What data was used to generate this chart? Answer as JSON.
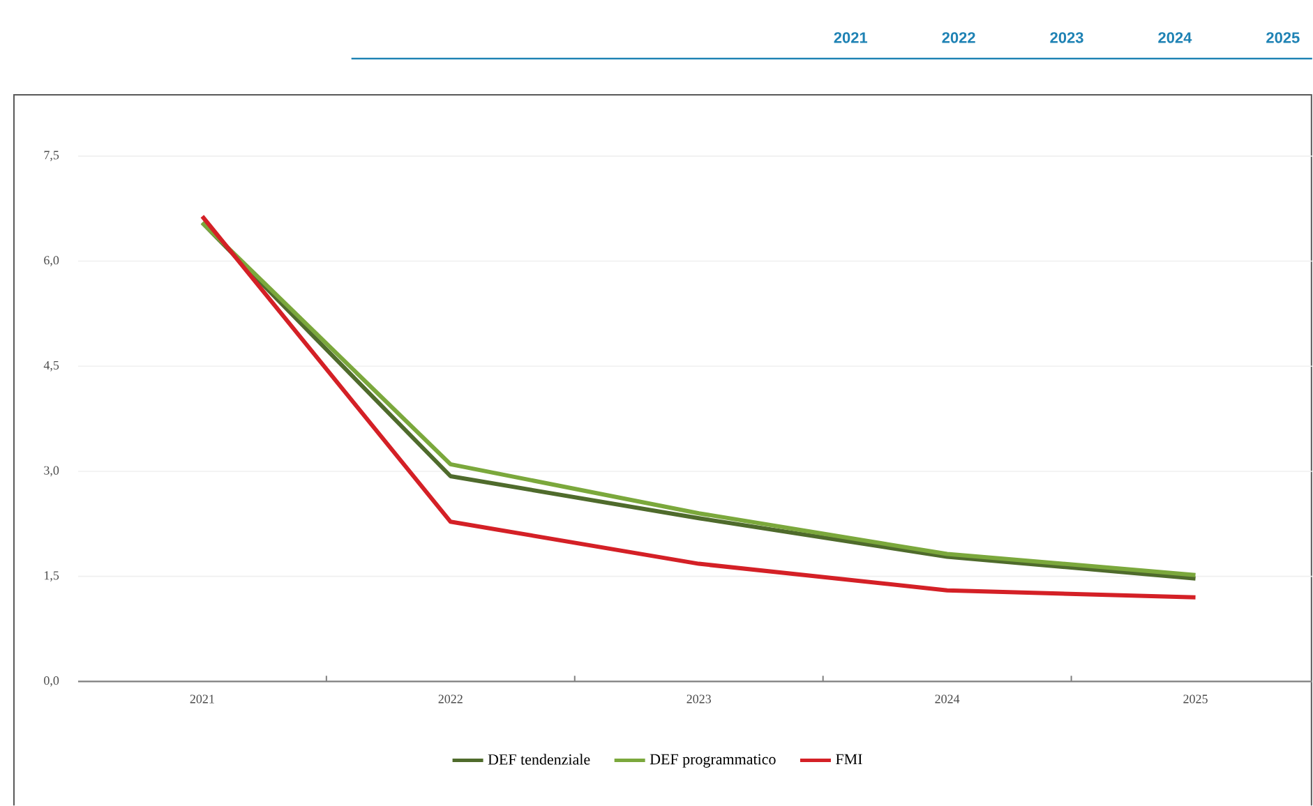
{
  "chart_data": {
    "type": "line",
    "categories": [
      "2021",
      "2022",
      "2023",
      "2024",
      "2025"
    ],
    "series": [
      {
        "name": "DEF tendenziale",
        "color": "#4f6b2c",
        "values": [
          6.55,
          2.93,
          2.33,
          1.78,
          1.47
        ]
      },
      {
        "name": "DEF programmatico",
        "color": "#7ba83c",
        "values": [
          6.55,
          3.1,
          2.4,
          1.82,
          1.52
        ]
      },
      {
        "name": "FMI",
        "color": "#d42026",
        "values": [
          6.64,
          2.28,
          1.68,
          1.3,
          1.2
        ]
      }
    ],
    "ylim": [
      0,
      7.5
    ],
    "yticks": [
      {
        "value": 0,
        "label": "0,0"
      },
      {
        "value": 1.5,
        "label": "1,5"
      },
      {
        "value": 3,
        "label": "3,0"
      },
      {
        "value": 4.5,
        "label": "4,5"
      },
      {
        "value": 6,
        "label": "6,0"
      },
      {
        "value": 7.5,
        "label": "7,5"
      }
    ],
    "grid": "y",
    "legend": "bottom",
    "marker": "none",
    "line_style": "solid",
    "annotations": [
      "2021",
      "2022",
      "2023",
      "2024",
      "2025"
    ]
  }
}
